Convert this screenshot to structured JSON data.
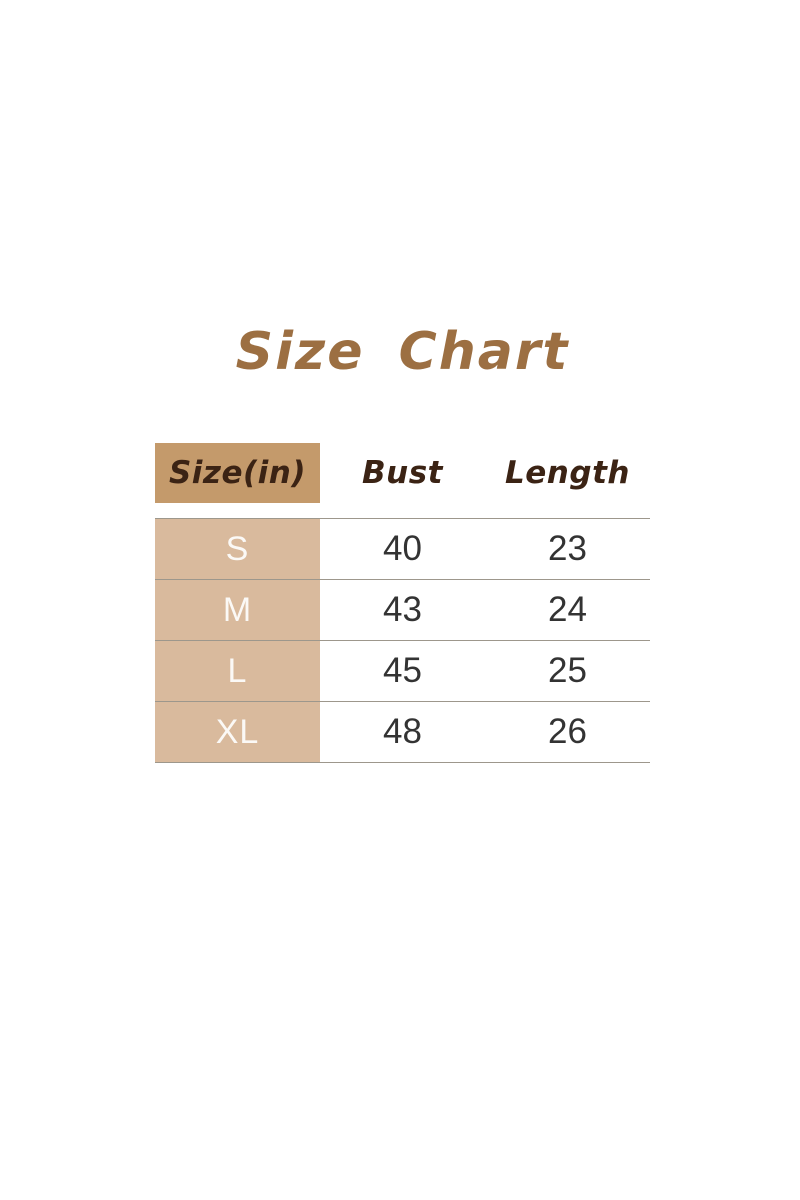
{
  "page": {
    "background": "#ffffff"
  },
  "title": {
    "text": "Size Chart"
  },
  "colors": {
    "title_text": "#9c6f42",
    "header_text": "#3b2314",
    "header_cell_bg": "#c49a6b",
    "body_cell_bg": "#d9ba9d",
    "size_text": "#fbf9f6",
    "number_text": "#333333",
    "row_line": "#9d978c"
  },
  "table": {
    "headers": {
      "size": "Size(in)",
      "bust": "Bust",
      "length": "Length"
    },
    "rows": [
      {
        "size": "S",
        "bust": "40",
        "length": "23"
      },
      {
        "size": "M",
        "bust": "43",
        "length": "24"
      },
      {
        "size": "L",
        "bust": "45",
        "length": "25"
      },
      {
        "size": "XL",
        "bust": "48",
        "length": "26"
      }
    ]
  },
  "chart_data": {
    "type": "table",
    "title": "Size Chart",
    "columns": [
      "Size(in)",
      "Bust",
      "Length"
    ],
    "rows": [
      [
        "S",
        40,
        23
      ],
      [
        "M",
        43,
        24
      ],
      [
        "L",
        45,
        25
      ],
      [
        "XL",
        48,
        26
      ]
    ]
  }
}
